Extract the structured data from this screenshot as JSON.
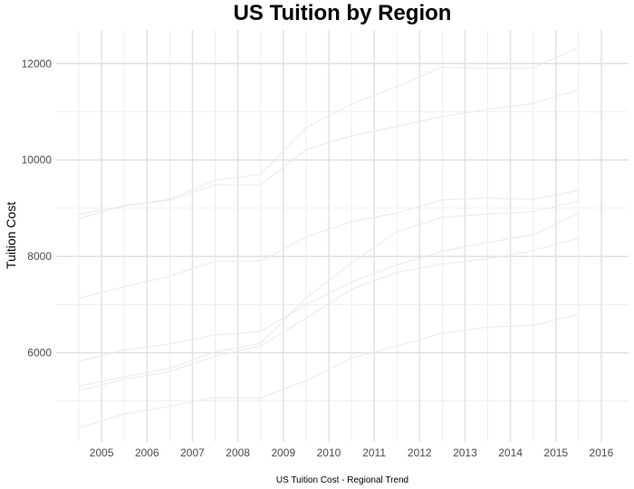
{
  "chart_data": {
    "type": "line",
    "title": "US Tuition by Region",
    "xlabel": "US Tuition Cost - Regional Trend",
    "ylabel": "Tuition Cost",
    "x": [
      2004.5,
      2005.5,
      2006.5,
      2007.5,
      2008.5,
      2009.5,
      2010.5,
      2011.5,
      2012.5,
      2013.5,
      2014.5,
      2015.5
    ],
    "xticks": [
      "2005",
      "2006",
      "2007",
      "2008",
      "2009",
      "2010",
      "2011",
      "2012",
      "2013",
      "2014",
      "2015",
      "2016"
    ],
    "yticks": [
      "6000",
      "8000",
      "10000",
      "12000"
    ],
    "xlim": [
      2004,
      2016.6
    ],
    "ylim": [
      4150,
      12700
    ],
    "grid": true,
    "legend": "none",
    "line_color": "#ebebeb",
    "series": [
      {
        "values": [
          8880,
          9040,
          9190,
          9580,
          9700,
          10670,
          11160,
          11520,
          11930,
          11900,
          11910,
          12340
        ]
      },
      {
        "values": [
          8780,
          9060,
          9160,
          9490,
          9480,
          10220,
          10500,
          10700,
          10900,
          11050,
          11170,
          11460
        ]
      },
      {
        "values": [
          7130,
          7370,
          7590,
          7900,
          7900,
          8400,
          8720,
          8900,
          9170,
          9210,
          9180,
          9370
        ]
      },
      {
        "values": [
          5820,
          6060,
          6180,
          6370,
          6440,
          7000,
          7470,
          7820,
          8110,
          8290,
          8450,
          8900
        ]
      },
      {
        "values": [
          5310,
          5500,
          5680,
          6020,
          6190,
          7140,
          7860,
          8510,
          8810,
          8880,
          8930,
          9140
        ]
      },
      {
        "values": [
          5210,
          5450,
          5610,
          5930,
          6140,
          6720,
          7320,
          7670,
          7840,
          7950,
          8120,
          8380
        ]
      },
      {
        "values": [
          4440,
          4730,
          4890,
          5070,
          5060,
          5420,
          5890,
          6140,
          6410,
          6530,
          6570,
          6800
        ]
      }
    ]
  }
}
